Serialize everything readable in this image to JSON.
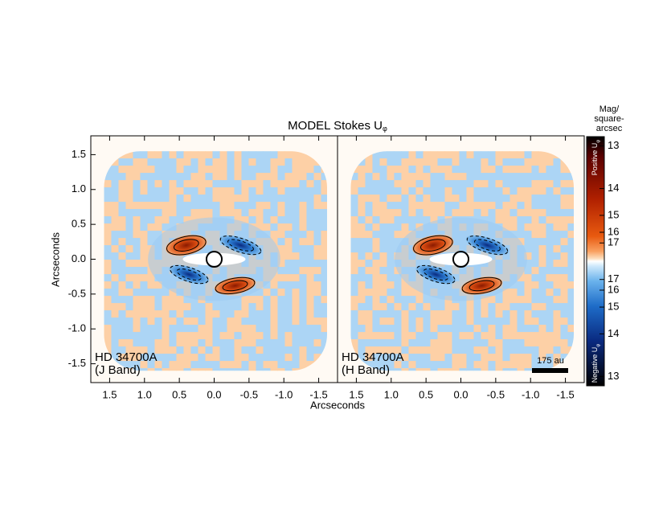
{
  "title": "MODEL Stokes U",
  "title_sub": "φ",
  "x_label": "Arcseconds",
  "chart_data": [
    {
      "type": "image",
      "y_label": "Arcseconds",
      "target": "HD 34700A",
      "band": "(J Band)",
      "xlim": [
        1.77,
        -1.77
      ],
      "ylim": [
        -1.77,
        1.77
      ],
      "xticks": [
        1.5,
        {
          "value": 1,
          "label": "1.0"
        },
        0.5,
        {
          "value": 0,
          "label": "0.0"
        },
        -0.5,
        {
          "value": -1,
          "label": "-1.0"
        },
        -1.5
      ],
      "yticks": [
        -1.5,
        {
          "value": -1,
          "label": "-1.0"
        },
        -0.5,
        {
          "value": 0,
          "label": "0.0"
        },
        0.5,
        {
          "value": 1,
          "label": "1.0"
        },
        1.5
      ]
    },
    {
      "type": "image",
      "target": "HD 34700A",
      "band": "(H Band)",
      "scale_bar": "175 au",
      "xlim": [
        1.77,
        -1.77
      ],
      "ylim": [
        -1.77,
        1.77
      ],
      "xticks": [
        1.5,
        {
          "value": 1,
          "label": "1.0"
        },
        0.5,
        {
          "value": 0,
          "label": "0.0"
        },
        -0.5,
        {
          "value": -1,
          "label": "-1.0"
        },
        -1.5
      ]
    }
  ],
  "colorbar": {
    "title_lines": [
      "Mag/",
      "square-",
      "arcsec"
    ],
    "positive_label": "Positive U",
    "negative_label": "Negative U",
    "label_sub": "φ",
    "scale": "sqrt-flux",
    "lim": 12.83,
    "positive_ticks": [
      13,
      14,
      15,
      16,
      17
    ],
    "negative_ticks": [
      17,
      16,
      15,
      14,
      13
    ]
  }
}
